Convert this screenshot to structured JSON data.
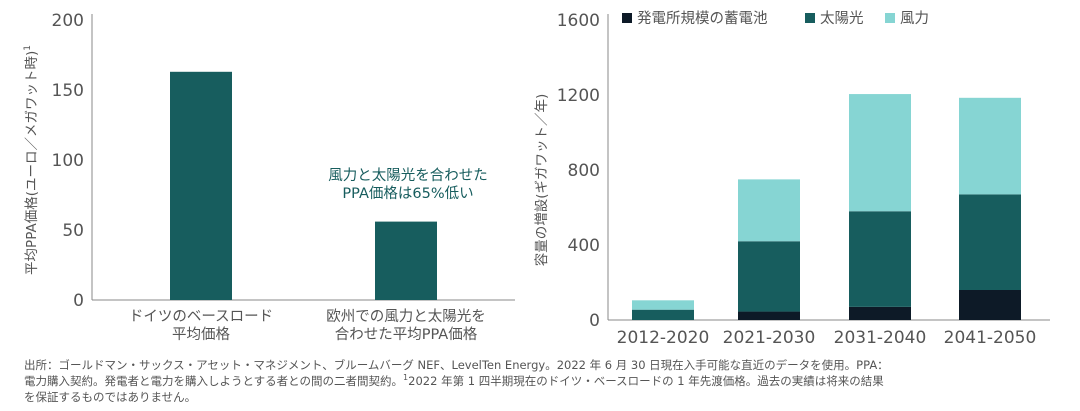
{
  "colors": {
    "dark_teal": "#175d5e",
    "light_teal": "#86d5d3",
    "navy": "#0d1a27",
    "axis": "#888888",
    "text": "#555555"
  },
  "chart_data": [
    {
      "type": "bar",
      "ylabel": "平均PPA価格(ユーロ／メガワット時)",
      "ylabel_sup": "1",
      "categories": [
        "ドイツのベースロード\n平均価格",
        "欧州での風力と太陽光を\n合わせた平均PPA価格"
      ],
      "values": [
        163,
        56
      ],
      "ylim": [
        0,
        200
      ],
      "yticks": [
        0,
        50,
        100,
        150,
        200
      ],
      "annotation": "風力と太陽光を合わせた\nPPA価格は65%低い",
      "grid": false
    },
    {
      "type": "bar",
      "stacked": true,
      "ylabel": "容量の増設(ギガワット／年)",
      "categories": [
        "2012-2020",
        "2021-2030",
        "2031-2040",
        "2041-2050"
      ],
      "series": [
        {
          "name": "発電所規模の蓄電池",
          "values": [
            0,
            45,
            70,
            160
          ]
        },
        {
          "name": "太陽光",
          "values": [
            55,
            375,
            510,
            510
          ]
        },
        {
          "name": "風力",
          "values": [
            50,
            330,
            625,
            515
          ]
        }
      ],
      "ylim": [
        0,
        1600
      ],
      "yticks": [
        0,
        400,
        800,
        1200,
        1600
      ],
      "legend": "top",
      "grid": false
    }
  ],
  "footnote": {
    "line1": "出所：ゴールドマン・サックス・アセット・マネジメント、ブルームバーグ NEF、LevelTen Energy。2022 年 6 月 30 日現在入手可能な直近のデータを使用。PPA：",
    "line2_a": "電力購入契約。発電者と電力を購入しようとする者との間の二者間契約。",
    "line2_sup": "1",
    "line2_b": "2022 年第 1 四半期現在のドイツ・ベースロードの 1 年先渡価格。過去の実績は将来の結果",
    "line3": "を保証するものではありません。"
  }
}
